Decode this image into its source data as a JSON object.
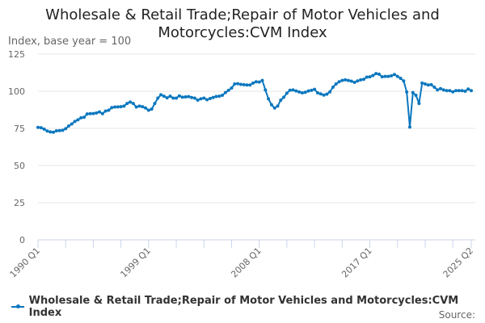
{
  "chart_data": {
    "type": "line",
    "title": "Wholesale & Retail Trade;Repair of Motor Vehicles and Motorcycles:CVM Index",
    "ylabel": "Index, base year = 100",
    "xlabel": "",
    "ylim": [
      0,
      125
    ],
    "yticks": [
      0,
      25,
      50,
      75,
      100,
      125
    ],
    "grid": true,
    "legend_position": "bottom",
    "x_start": "1990 Q1",
    "x_end": "2025 Q2",
    "xtick_labels": [
      "1990 Q1",
      "1999 Q1",
      "2008 Q1",
      "2017 Q1",
      "2025 Q2"
    ],
    "color": "#0b77be",
    "series": [
      {
        "name": "Wholesale & Retail Trade;Repair of Motor Vehicles and Motorcycles:CVM Index",
        "values": [
          75.7,
          75.5,
          74.5,
          73.2,
          72.6,
          72.4,
          73.4,
          73.5,
          73.7,
          74.8,
          76.6,
          78,
          79.7,
          80.8,
          82.1,
          82.5,
          84.7,
          84.9,
          85,
          85.4,
          86.1,
          84.9,
          86.7,
          87.2,
          89,
          89.4,
          89.5,
          89.6,
          90,
          91.8,
          92.7,
          91.8,
          89.4,
          90,
          89.6,
          88.7,
          87.2,
          88,
          91.8,
          95.4,
          97.6,
          96.7,
          95.6,
          96.7,
          95.4,
          95.4,
          96.9,
          96,
          96.2,
          96.4,
          95.8,
          95.4,
          94,
          94.9,
          95.4,
          94.3,
          95.1,
          95.8,
          96.5,
          96.7,
          97.3,
          99.1,
          100.6,
          102.2,
          104.9,
          105.1,
          104.6,
          104.4,
          104.2,
          104.2,
          105.5,
          106.4,
          106.2,
          107.3,
          100.9,
          94.9,
          90.9,
          88.7,
          90,
          94,
          96,
          98.7,
          100.7,
          100.9,
          100.2,
          99.5,
          98.9,
          99.3,
          100.2,
          100.6,
          101.3,
          98.9,
          98.2,
          97.4,
          98,
          99.6,
          102.7,
          104.9,
          106.4,
          107.3,
          107.7,
          107.3,
          106.8,
          106,
          106.9,
          107.7,
          108,
          109.5,
          109.7,
          110.6,
          111.9,
          111.5,
          109.7,
          110,
          110,
          110.4,
          111.3,
          110,
          108.7,
          106.9,
          99.5,
          75.9,
          99.1,
          97.3,
          91.8,
          105.5,
          104.9,
          104.2,
          104.4,
          102.7,
          100.9,
          101.8,
          100.9,
          100.4,
          100.4,
          99.6,
          100.4,
          100.4,
          100.4,
          100,
          101.5,
          100.4
        ]
      }
    ]
  },
  "source_label": "Source:"
}
